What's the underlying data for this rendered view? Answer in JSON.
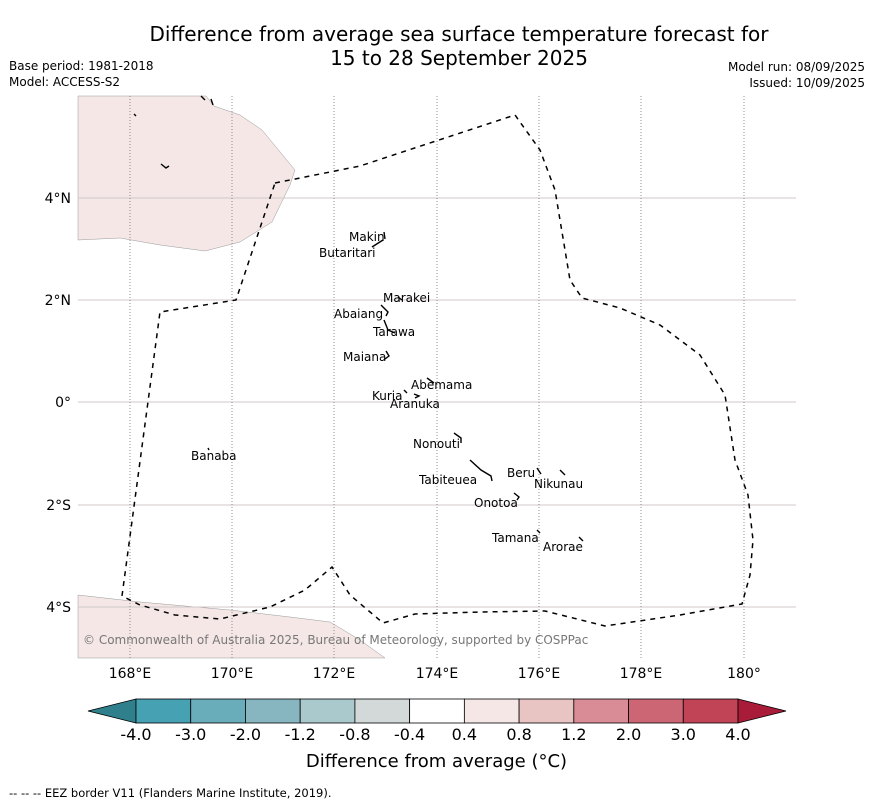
{
  "title_line1": "Difference from average sea surface temperature forecast for",
  "title_line2": "15 to 28 September 2025",
  "meta_left": {
    "base_period": "Base period: 1981-2018",
    "model": "Model: ACCESS-S2"
  },
  "meta_right": {
    "model_run": "Model run: 08/09/2025",
    "issued": "Issued: 10/09/2025"
  },
  "lat_labels": [
    "4°N",
    "2°N",
    "0°",
    "2°S",
    "4°S"
  ],
  "lon_labels": [
    "168°E",
    "170°E",
    "172°E",
    "174°E",
    "176°E",
    "178°E",
    "180°"
  ],
  "places": [
    {
      "name": "Makin"
    },
    {
      "name": "Butaritari"
    },
    {
      "name": "Marakei"
    },
    {
      "name": "Abaiang"
    },
    {
      "name": "Tarawa"
    },
    {
      "name": "Maiana"
    },
    {
      "name": "Abemama"
    },
    {
      "name": "Kuria"
    },
    {
      "name": "Aranuka"
    },
    {
      "name": "Banaba"
    },
    {
      "name": "Nonouti"
    },
    {
      "name": "Beru"
    },
    {
      "name": "Nikunau"
    },
    {
      "name": "Tabiteuea"
    },
    {
      "name": "Onotoa"
    },
    {
      "name": "Tamana"
    },
    {
      "name": "Arorae"
    }
  ],
  "copyright": "© Commonwealth of Australia 2025, Bureau of Meteorology, supported by COSPPac",
  "colorbar": {
    "ticks": [
      "-4.0",
      "-3.0",
      "-2.0",
      "-1.2",
      "-0.8",
      "-0.4",
      "0.4",
      "0.8",
      "1.2",
      "2.0",
      "3.0",
      "4.0"
    ],
    "colors": [
      "#2f7f8c",
      "#46a1b2",
      "#68adb9",
      "#88b6c0",
      "#a9c9cd",
      "#d3d8d8",
      "#ffffff",
      "#f4e7e6",
      "#e8c5c3",
      "#d98c95",
      "#cc6675",
      "#c04455",
      "#a81c3a"
    ],
    "label": "Difference from average (°C)"
  },
  "land_color": "#f4e7e6",
  "footnote": "--  --  -- EEZ border V11 (Flanders Marine Institute, 2019)."
}
